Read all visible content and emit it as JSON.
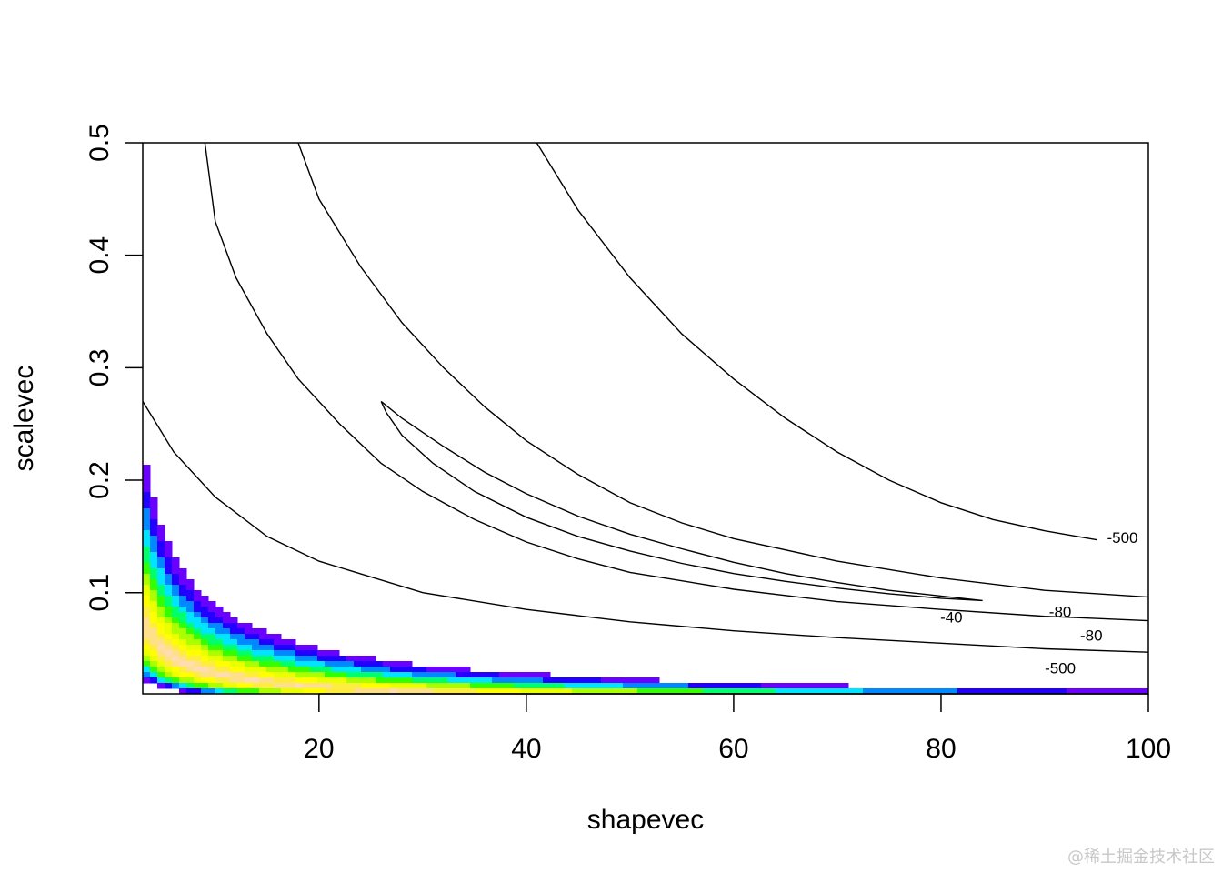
{
  "chart_data": {
    "type": "heatmap",
    "subtype": "filled contour with contour lines",
    "xlabel": "shapevec",
    "ylabel": "scalevec",
    "xlim": [
      3,
      100
    ],
    "ylim": [
      0.01,
      0.5
    ],
    "x_ticks": [
      20,
      40,
      60,
      80,
      100
    ],
    "y_ticks": [
      0.1,
      0.2,
      0.3,
      0.4,
      0.5
    ],
    "fill_colors": [
      "#6a00ff",
      "#2200ff",
      "#0088ff",
      "#00e5ff",
      "#00ff6a",
      "#33ff00",
      "#aaff00",
      "#eaff00",
      "#ffff00",
      "#ffec40",
      "#ffe08a",
      "#ffdcb2"
    ],
    "contour_lines": [
      {
        "label": "-500",
        "points": [
          [
            3,
            0.27
          ],
          [
            6,
            0.225
          ],
          [
            10,
            0.185
          ],
          [
            15,
            0.15
          ],
          [
            20,
            0.128
          ],
          [
            30,
            0.1
          ],
          [
            40,
            0.085
          ],
          [
            50,
            0.074
          ],
          [
            60,
            0.066
          ],
          [
            70,
            0.06
          ],
          [
            80,
            0.055
          ],
          [
            90,
            0.05
          ],
          [
            100,
            0.047
          ]
        ]
      },
      {
        "label": "-500",
        "points": [
          [
            41,
            0.5
          ],
          [
            45,
            0.44
          ],
          [
            50,
            0.38
          ],
          [
            55,
            0.33
          ],
          [
            60,
            0.29
          ],
          [
            65,
            0.255
          ],
          [
            70,
            0.225
          ],
          [
            75,
            0.2
          ],
          [
            80,
            0.18
          ],
          [
            85,
            0.165
          ],
          [
            90,
            0.155
          ],
          [
            95,
            0.147
          ]
        ]
      },
      {
        "label": "-80",
        "points": [
          [
            9,
            0.5
          ],
          [
            10,
            0.43
          ],
          [
            12,
            0.38
          ],
          [
            15,
            0.33
          ],
          [
            18,
            0.29
          ],
          [
            22,
            0.25
          ],
          [
            26,
            0.215
          ],
          [
            30,
            0.19
          ],
          [
            35,
            0.165
          ],
          [
            40,
            0.145
          ],
          [
            45,
            0.13
          ],
          [
            50,
            0.118
          ],
          [
            60,
            0.103
          ],
          [
            70,
            0.092
          ],
          [
            80,
            0.085
          ],
          [
            90,
            0.079
          ],
          [
            100,
            0.075
          ]
        ]
      },
      {
        "label": "-80",
        "points": [
          [
            18,
            0.5
          ],
          [
            20,
            0.45
          ],
          [
            24,
            0.39
          ],
          [
            28,
            0.34
          ],
          [
            32,
            0.3
          ],
          [
            36,
            0.265
          ],
          [
            40,
            0.235
          ],
          [
            45,
            0.205
          ],
          [
            50,
            0.18
          ],
          [
            55,
            0.162
          ],
          [
            60,
            0.148
          ],
          [
            70,
            0.128
          ],
          [
            80,
            0.113
          ],
          [
            90,
            0.102
          ],
          [
            100,
            0.096
          ]
        ]
      },
      {
        "label": "-40",
        "points": [
          [
            26,
            0.27
          ],
          [
            28,
            0.255
          ],
          [
            32,
            0.23
          ],
          [
            36,
            0.207
          ],
          [
            40,
            0.188
          ],
          [
            45,
            0.168
          ],
          [
            50,
            0.152
          ],
          [
            55,
            0.139
          ],
          [
            60,
            0.127
          ],
          [
            65,
            0.117
          ],
          [
            70,
            0.109
          ],
          [
            75,
            0.102
          ],
          [
            80,
            0.097
          ],
          [
            84,
            0.093
          ],
          [
            80,
            0.095
          ],
          [
            75,
            0.099
          ],
          [
            70,
            0.104
          ],
          [
            65,
            0.11
          ],
          [
            60,
            0.117
          ],
          [
            55,
            0.126
          ],
          [
            50,
            0.137
          ],
          [
            45,
            0.15
          ],
          [
            40,
            0.167
          ],
          [
            35,
            0.19
          ],
          [
            31,
            0.215
          ],
          [
            28,
            0.24
          ],
          [
            26.5,
            0.26
          ],
          [
            26,
            0.27
          ]
        ]
      }
    ],
    "contour_labels": [
      {
        "text": "-500",
        "x": 97.5,
        "y": 0.148
      },
      {
        "text": "-80",
        "x": 91.5,
        "y": 0.082
      },
      {
        "text": "-80",
        "x": 94.5,
        "y": 0.061
      },
      {
        "text": "-40",
        "x": 81,
        "y": 0.077
      },
      {
        "text": "-500",
        "x": 91.5,
        "y": 0.032
      }
    ]
  },
  "watermark": "@稀土掘金技术社区"
}
